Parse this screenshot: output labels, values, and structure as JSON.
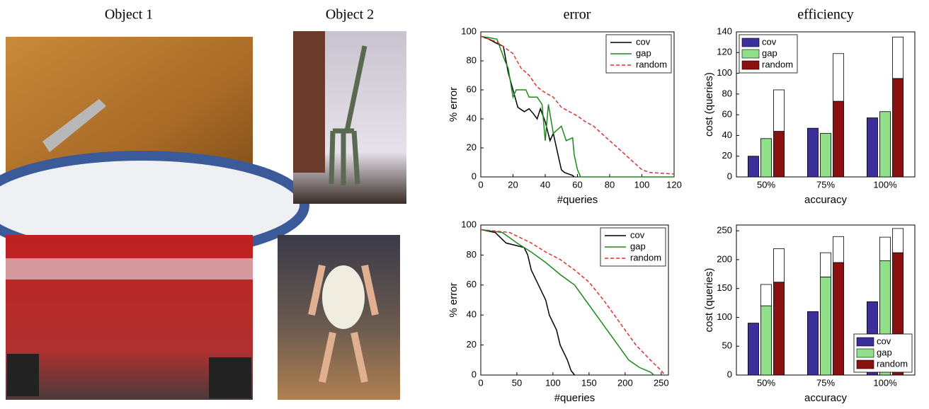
{
  "column_titles": [
    "Object 1",
    "Object 2",
    "error",
    "efficiency"
  ],
  "chart_data": [
    {
      "type": "line",
      "xlabel": "#queries",
      "ylabel": "% error",
      "xlim": [
        0,
        120
      ],
      "xticks": [
        0,
        20,
        40,
        60,
        80,
        100,
        120
      ],
      "ylim": [
        0,
        100
      ],
      "yticks": [
        0,
        20,
        40,
        60,
        80,
        100
      ],
      "legend": "upper right",
      "series": [
        {
          "name": "cov",
          "color": "#000000",
          "x": [
            0,
            5,
            10,
            14,
            17,
            20,
            23,
            27,
            30,
            33,
            35,
            37,
            40,
            43,
            45,
            48,
            50,
            52,
            57,
            58
          ],
          "values": [
            97,
            95,
            92,
            90,
            72,
            60,
            48,
            45,
            47,
            43,
            40,
            47,
            38,
            25,
            30,
            15,
            5,
            3,
            1,
            0
          ]
        },
        {
          "name": "gap",
          "color": "#1a8a1a",
          "x": [
            0,
            10,
            15,
            17,
            20,
            22,
            28,
            30,
            35,
            38,
            40,
            42,
            45,
            50,
            53,
            57,
            58,
            60,
            62,
            120
          ],
          "values": [
            97,
            95,
            80,
            75,
            55,
            60,
            60,
            55,
            55,
            50,
            25,
            50,
            30,
            35,
            25,
            27,
            15,
            5,
            0,
            0
          ]
        },
        {
          "name": "random",
          "color": "#e03030",
          "dash": true,
          "x": [
            0,
            10,
            20,
            25,
            30,
            35,
            40,
            45,
            50,
            55,
            60,
            65,
            70,
            75,
            80,
            85,
            90,
            95,
            100,
            105,
            120
          ],
          "values": [
            97,
            93,
            85,
            75,
            70,
            62,
            58,
            55,
            48,
            45,
            42,
            38,
            35,
            30,
            25,
            20,
            15,
            10,
            5,
            3,
            2
          ]
        }
      ]
    },
    {
      "type": "bar",
      "xlabel": "accuracy",
      "ylabel": "cost (queries)",
      "categories": [
        "50%",
        "75%",
        "100%"
      ],
      "ylim": [
        0,
        140
      ],
      "yticks": [
        0,
        20,
        40,
        60,
        80,
        100,
        120,
        140
      ],
      "legend": "upper left",
      "series": [
        {
          "name": "cov",
          "color": "#3a2f9b",
          "values": [
            20,
            47,
            57
          ]
        },
        {
          "name": "gap",
          "color": "#90e08a",
          "values": [
            37,
            42,
            63
          ]
        },
        {
          "name": "random",
          "color": "#8b1010",
          "values": [
            44,
            73,
            95
          ]
        },
        {
          "color": "#ffffff",
          "stacked_on": 2,
          "values": [
            40,
            46,
            40
          ]
        }
      ]
    },
    {
      "type": "line",
      "xlabel": "#queries",
      "ylabel": "% error",
      "xlim": [
        0,
        260
      ],
      "xticks": [
        0,
        50,
        100,
        150,
        200,
        250
      ],
      "ylim": [
        0,
        100
      ],
      "yticks": [
        0,
        20,
        40,
        60,
        80,
        100
      ],
      "legend": "upper right",
      "series": [
        {
          "name": "cov",
          "color": "#000000",
          "x": [
            0,
            20,
            35,
            60,
            65,
            70,
            80,
            90,
            95,
            105,
            110,
            120,
            125,
            130
          ],
          "values": [
            97,
            95,
            88,
            85,
            80,
            70,
            60,
            50,
            40,
            30,
            20,
            10,
            3,
            0
          ]
        },
        {
          "name": "gap",
          "color": "#1a8a1a",
          "x": [
            0,
            30,
            50,
            70,
            90,
            110,
            130,
            145,
            160,
            175,
            190,
            205,
            220,
            235,
            240
          ],
          "values": [
            97,
            95,
            88,
            82,
            75,
            67,
            60,
            50,
            40,
            30,
            20,
            10,
            5,
            2,
            0
          ]
        },
        {
          "name": "random",
          "color": "#e03030",
          "dash": true,
          "x": [
            0,
            40,
            70,
            90,
            110,
            130,
            150,
            170,
            185,
            200,
            215,
            235,
            250,
            255
          ],
          "values": [
            97,
            95,
            88,
            82,
            77,
            70,
            62,
            50,
            40,
            30,
            20,
            10,
            3,
            0
          ]
        }
      ]
    },
    {
      "type": "bar",
      "xlabel": "accuracy",
      "ylabel": "cost (queries)",
      "categories": [
        "50%",
        "75%",
        "100%"
      ],
      "ylim": [
        0,
        260
      ],
      "yticks": [
        0,
        50,
        100,
        150,
        200,
        250
      ],
      "legend": "lower right",
      "series": [
        {
          "name": "cov",
          "color": "#3a2f9b",
          "values": [
            90,
            110,
            127
          ]
        },
        {
          "name": "gap",
          "color": "#90e08a",
          "values": [
            120,
            170,
            198
          ]
        },
        {
          "name": "random",
          "color": "#8b1010",
          "values": [
            161,
            195,
            212
          ]
        },
        {
          "color": "#ffffff",
          "stacked_on": 1,
          "values": [
            37,
            42,
            41
          ]
        },
        {
          "color": "#ffffff",
          "stacked_on": 2,
          "values": [
            58,
            45,
            42
          ]
        }
      ]
    }
  ]
}
